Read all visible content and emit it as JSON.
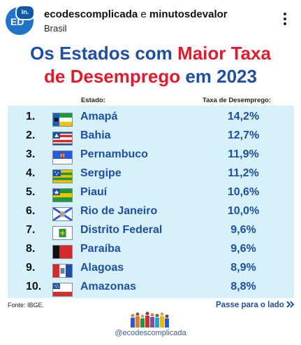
{
  "header": {
    "avatar_text": "ED",
    "avatar_badge": "in.",
    "account": "ecodescomplicada",
    "conjunction": "e",
    "collaborator": "minutosdevalor",
    "location": "Brasil",
    "more_icon": "vertical-ellipsis-icon"
  },
  "post": {
    "title_line1_a": "Os Estados com ",
    "title_line1_b": "Maior Taxa",
    "title_line2_a": "de Desemprego",
    "title_line2_b": " em 2023",
    "col_state": "Estado:",
    "col_rate": "Taxa de Desemprego:",
    "rows": [
      {
        "rank": "1.",
        "state": "Amapá",
        "rate": "14,2%"
      },
      {
        "rank": "2.",
        "state": "Bahia",
        "rate": "12,7%"
      },
      {
        "rank": "3.",
        "state": "Pernambuco",
        "rate": "11,9%"
      },
      {
        "rank": "4.",
        "state": "Sergipe",
        "rate": "11,2%"
      },
      {
        "rank": "5.",
        "state": "Piauí",
        "rate": "10,6%"
      },
      {
        "rank": "6.",
        "state": "Rio de Janeiro",
        "rate": "10,0%"
      },
      {
        "rank": "7.",
        "state": "Distrito Federal",
        "rate": "9,6%"
      },
      {
        "rank": "8.",
        "state": "Paraíba",
        "rate": "9,6%"
      },
      {
        "rank": "9.",
        "state": "Alagoas",
        "rate": "8,9%"
      },
      {
        "rank": "10.",
        "state": "Amazonas",
        "rate": "8,8%"
      }
    ],
    "source": "Fonte: IBGE.",
    "swipe": "Passe para o lado",
    "swipe_icon": "double-chevron-right-icon",
    "handle": "@ecodescomplicada"
  },
  "colors": {
    "title_blue": "#1f4ea3",
    "title_red": "#e01b2d",
    "table_bg": "#d6f1f9",
    "avatar_blue": "#1f74c7"
  }
}
